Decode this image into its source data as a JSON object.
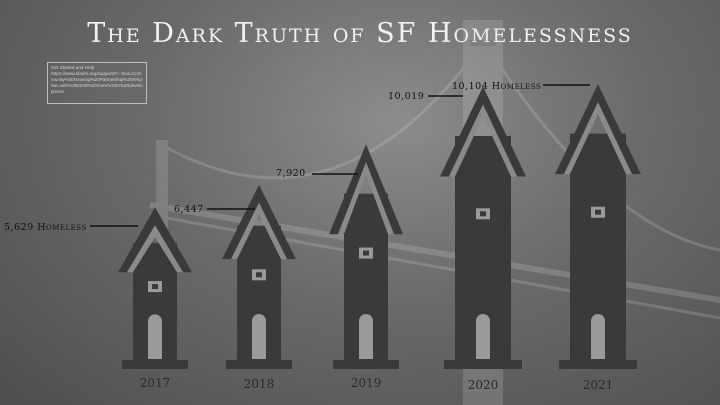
{
  "title": "The Dark Truth of SF Homelessness",
  "note": {
    "heading": "Get Started and Help:",
    "url": "https://www.sfadm.org/support/#:~:text=Community%20Housing%20Partnership%20is%20an,with%202040%20more%20in%20development"
  },
  "chart_data": {
    "type": "bar",
    "title": "The Dark Truth of SF Homelessness",
    "categories": [
      "2017",
      "2018",
      "2019",
      "2020",
      "2021"
    ],
    "values": [
      5629,
      6447,
      7920,
      10019,
      10104
    ],
    "data_labels": [
      "5,629 Homeless",
      "6,447",
      "7,920",
      "10,019",
      "10,104 Homeless"
    ],
    "xlabel": "",
    "ylabel": "",
    "mark_color": "#3a3a3a"
  }
}
